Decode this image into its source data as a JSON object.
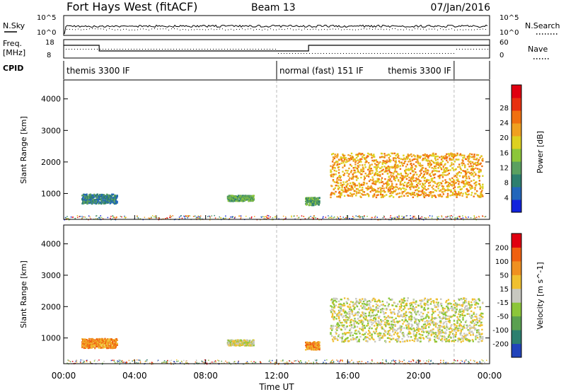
{
  "header": {
    "title": "Fort Hays West (fitACF)",
    "beam": "Beam 13",
    "date": "07/Jan/2016"
  },
  "sky_panel": {
    "left_label": "N.Sky",
    "right_label": "N.Search",
    "left_ticks": [
      "10^5",
      "10^0"
    ],
    "right_ticks": [
      "10^5",
      "10^0"
    ]
  },
  "freq_panel": {
    "left_label_line1": "Freq.",
    "left_label_line2": "[MHz]",
    "right_label": "Nave",
    "left_ticks": [
      "18",
      "8"
    ],
    "right_ticks": [
      "60",
      "0"
    ]
  },
  "cpid": {
    "label": "CPID",
    "segments": [
      {
        "name": "themis 3300 IF",
        "start_h": 0,
        "end_h": 12
      },
      {
        "name": "normal (fast) 151 IF",
        "start_h": 12,
        "end_h": 22
      },
      {
        "name": "themis 3300 IF",
        "start_h": 22,
        "end_h": 24
      }
    ]
  },
  "chart_data": [
    {
      "type": "heatmap",
      "name": "power",
      "ylabel": "Slant Range [km]",
      "xlabel": "Time UT",
      "xlim": [
        0,
        24
      ],
      "ylim": [
        180,
        4600
      ],
      "y_ticks": [
        "1000",
        "2000",
        "3000",
        "4000"
      ],
      "x_ticks": [
        "00:00",
        "04:00",
        "08:00",
        "12:00",
        "16:00",
        "20:00",
        "00:00"
      ],
      "colorbar": {
        "label": "Power [dB]",
        "ticks": [
          "4",
          "8",
          "12",
          "16",
          "20",
          "24",
          "28"
        ],
        "colors": [
          "#1122dd",
          "#2266bb",
          "#2d7f6f",
          "#5aa060",
          "#8cc63a",
          "#ddd020",
          "#f0a020",
          "#f07010",
          "#e83010",
          "#e00010"
        ]
      },
      "echoes": [
        {
          "start_h": 1.0,
          "end_h": 3.0,
          "range_min": 700,
          "range_max": 1000,
          "level": 2
        },
        {
          "start_h": 9.2,
          "end_h": 10.7,
          "range_min": 780,
          "range_max": 960,
          "level": 3
        },
        {
          "start_h": 13.6,
          "end_h": 14.4,
          "range_min": 650,
          "range_max": 900,
          "level": 3
        },
        {
          "start_h": 15.0,
          "end_h": 23.6,
          "range_min": 900,
          "range_max": 2300,
          "level": 6
        }
      ]
    },
    {
      "type": "heatmap",
      "name": "velocity",
      "ylabel": "Slant Range [km]",
      "xlabel": "Time UT",
      "xlim": [
        0,
        24
      ],
      "ylim": [
        180,
        4600
      ],
      "y_ticks": [
        "1000",
        "2000",
        "3000",
        "4000"
      ],
      "x_ticks": [
        "00:00",
        "04:00",
        "08:00",
        "12:00",
        "16:00",
        "20:00",
        "00:00"
      ],
      "colorbar": {
        "label": "Velocity [m s^-1]",
        "ticks": [
          "200",
          "100",
          "50",
          "15",
          "-15",
          "-50",
          "-100",
          "-200"
        ],
        "colors": [
          "#2244bb",
          "#2d7f6f",
          "#5aa050",
          "#8cc63a",
          "#c8c8c0",
          "#f0c030",
          "#f09020",
          "#f06010",
          "#e00010"
        ]
      },
      "echoes": [
        {
          "start_h": 1.0,
          "end_h": 3.0,
          "range_min": 700,
          "range_max": 1000,
          "level": 6
        },
        {
          "start_h": 9.2,
          "end_h": 10.7,
          "range_min": 780,
          "range_max": 960,
          "level": 4
        },
        {
          "start_h": 13.6,
          "end_h": 14.4,
          "range_min": 650,
          "range_max": 900,
          "level": 6
        },
        {
          "start_h": 15.0,
          "end_h": 23.6,
          "range_min": 900,
          "range_max": 2300,
          "level": 4
        }
      ]
    }
  ]
}
